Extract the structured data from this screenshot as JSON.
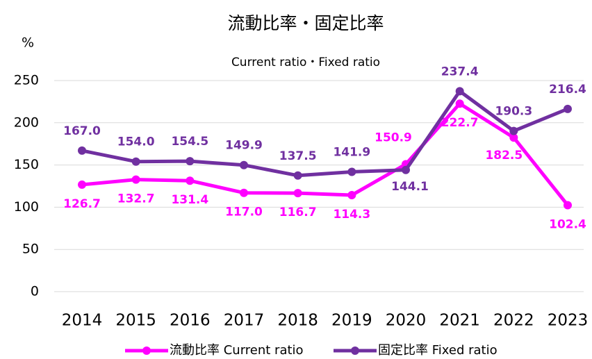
{
  "chart_data": {
    "type": "line",
    "title": "流動比率・固定比率",
    "subtitle": "Current ratio・Fixed ratio",
    "y_unit": "%",
    "categories": [
      "2014",
      "2015",
      "2016",
      "2017",
      "2018",
      "2019",
      "2020",
      "2021",
      "2022",
      "2023"
    ],
    "series": [
      {
        "name": "流動比率 Current ratio",
        "color": "#ff00ff",
        "values": [
          126.7,
          132.7,
          131.4,
          117.0,
          116.7,
          114.3,
          150.9,
          222.7,
          182.5,
          102.4
        ],
        "value_labels": [
          "126.7",
          "132.7",
          "131.4",
          "117.0",
          "116.7",
          "114.3",
          "150.9",
          "222.7",
          "182.5",
          "102.4"
        ]
      },
      {
        "name": "固定比率 Fixed ratio",
        "color": "#7030a0",
        "values": [
          167.0,
          154.0,
          154.5,
          149.9,
          137.5,
          141.9,
          144.1,
          237.4,
          190.3,
          216.4
        ],
        "value_labels": [
          "167.0",
          "154.0",
          "154.5",
          "149.9",
          "137.5",
          "141.9",
          "144.1",
          "237.4",
          "190.3",
          "216.4"
        ]
      }
    ],
    "ylim": [
      0,
      250
    ],
    "yticks": [
      0,
      50,
      100,
      150,
      200,
      250
    ],
    "grid": true,
    "legend": "bottom"
  }
}
